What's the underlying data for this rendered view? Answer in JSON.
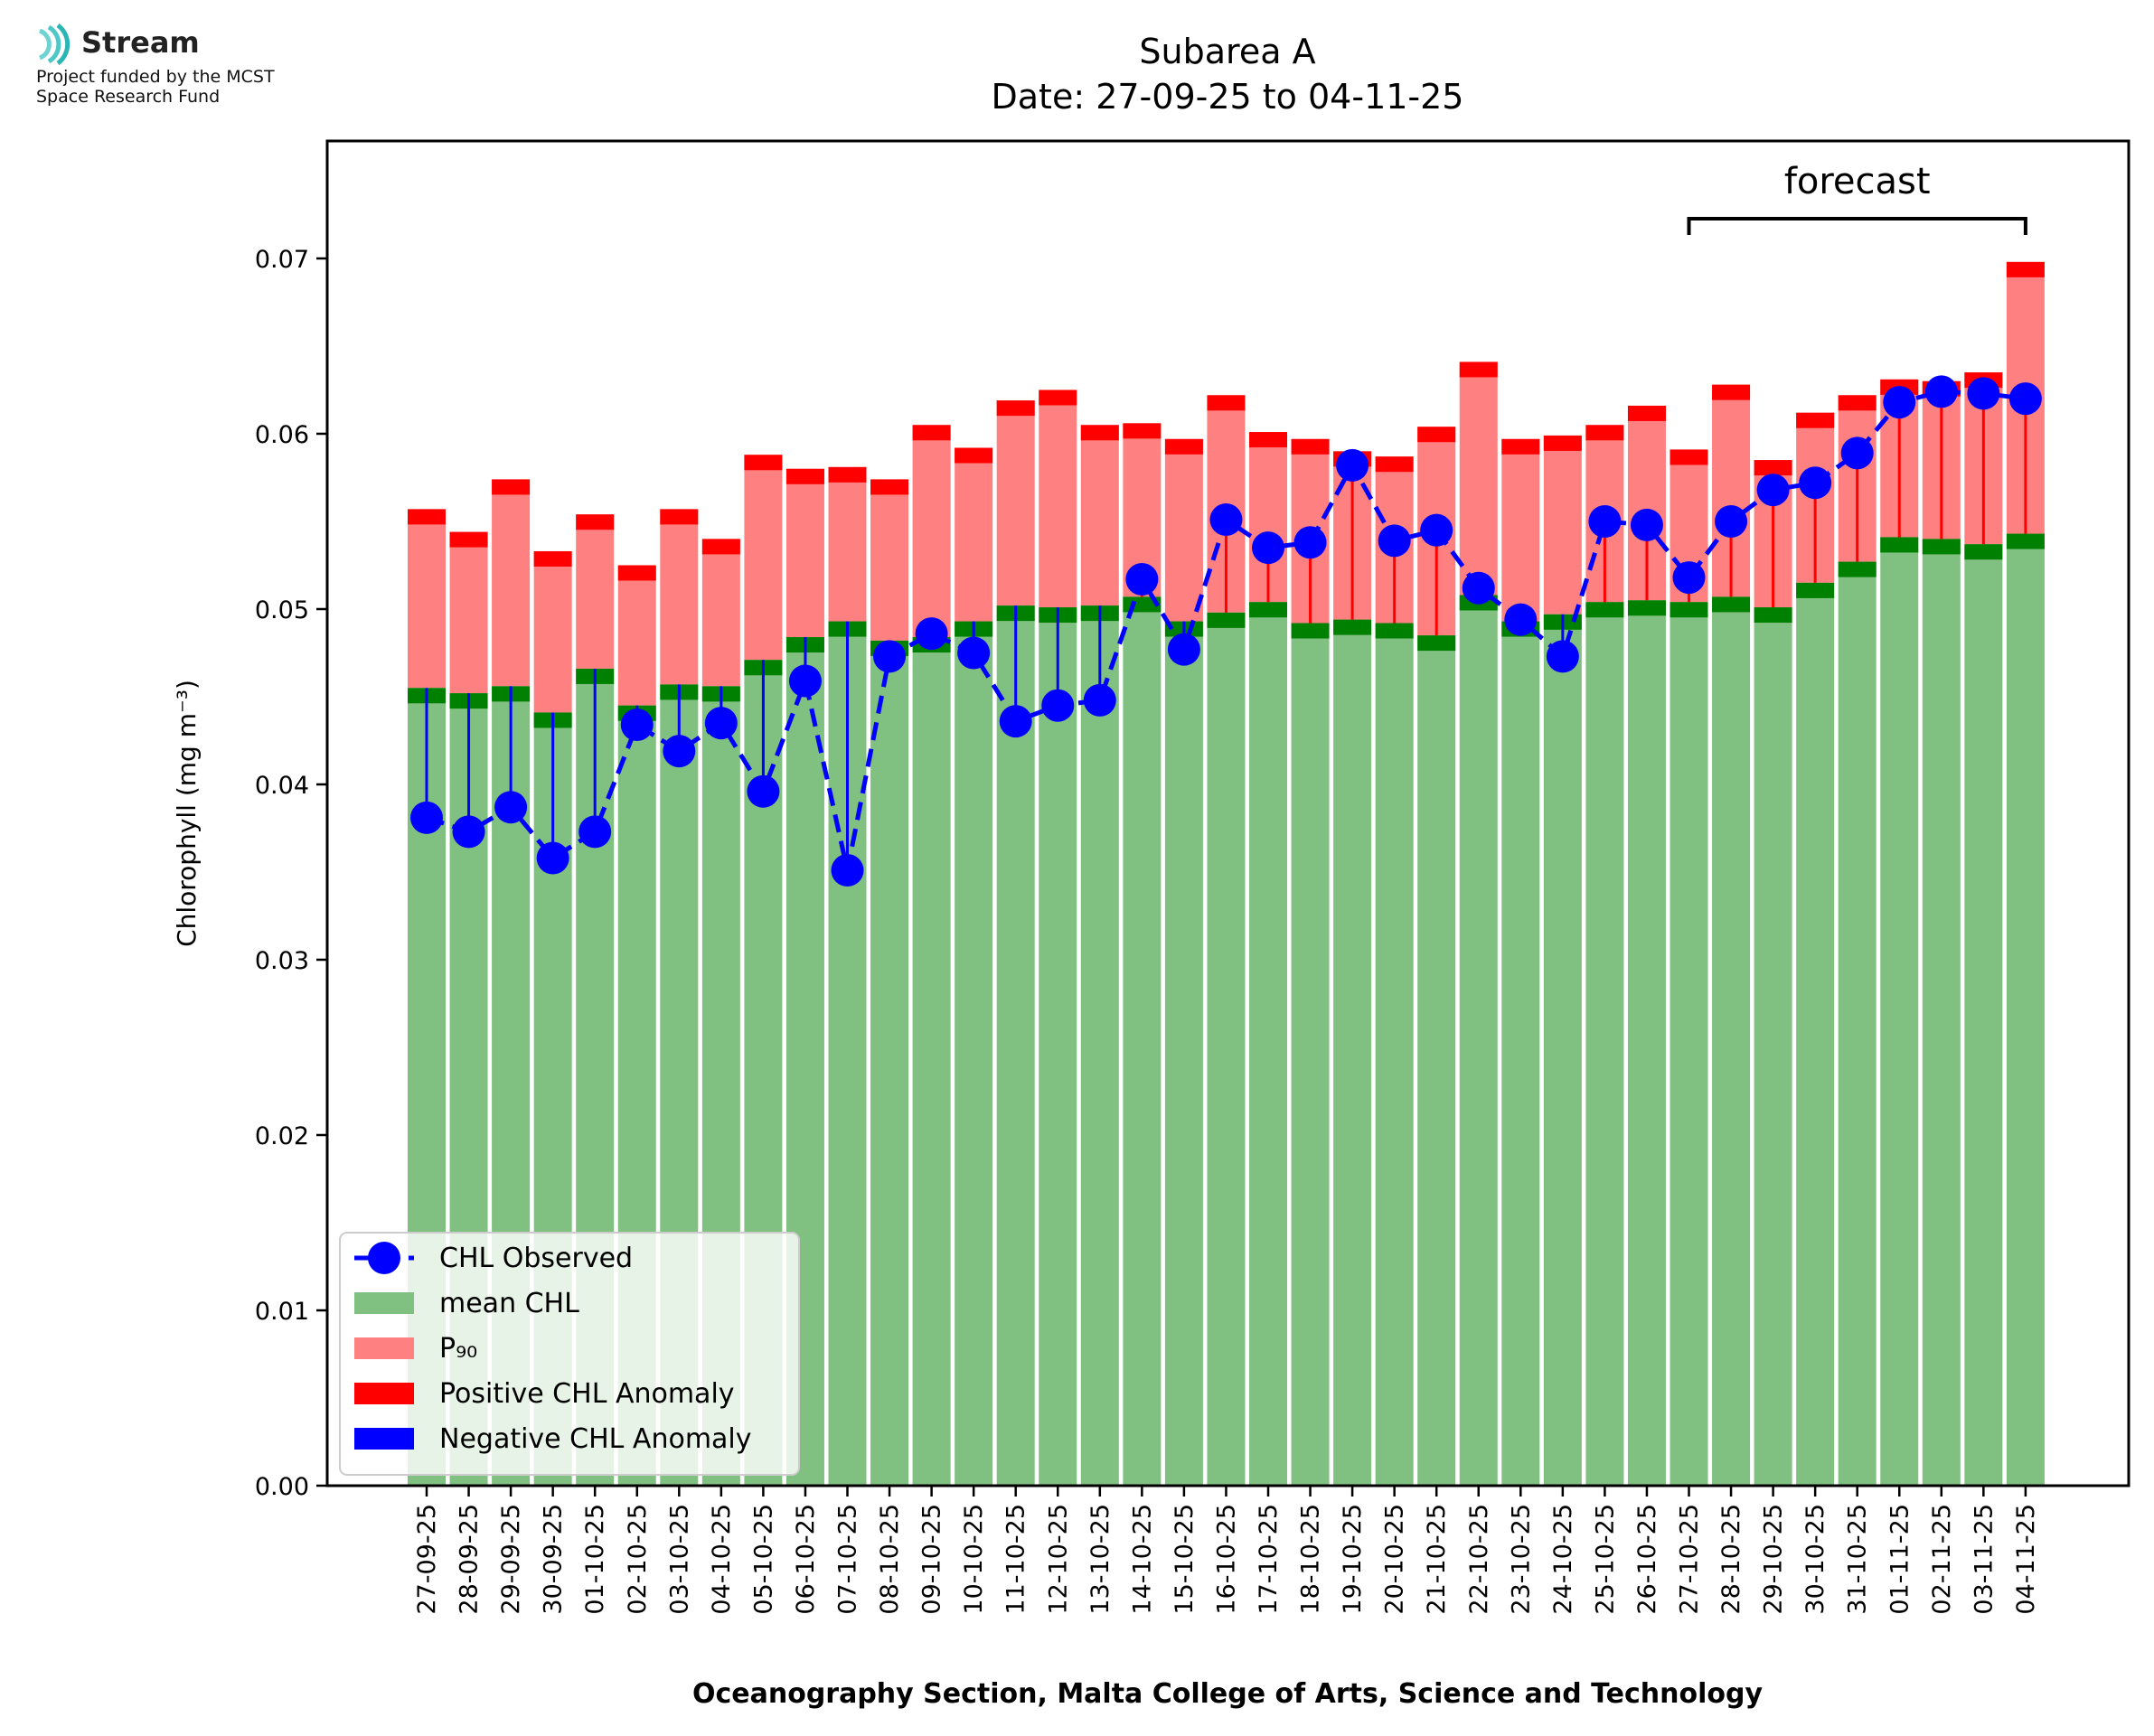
{
  "branding": {
    "logo_name": "Stream",
    "funding_line1": "Project funded by the MCST",
    "funding_line2": "Space Research Fund"
  },
  "chart_data": {
    "type": "bar",
    "title_line1": "Subarea A",
    "title_line2": "Date: 27-09-25 to 04-11-25",
    "xlabel": "Oceanography Section, Malta College of Arts, Science and Technology",
    "ylabel": "Chlorophyll (mg m⁻³)",
    "ylim": [
      0,
      0.0767
    ],
    "yticks": [
      0.0,
      0.01,
      0.02,
      0.03,
      0.04,
      0.05,
      0.06,
      0.07
    ],
    "ytick_labels": [
      "0.00",
      "0.01",
      "0.02",
      "0.03",
      "0.04",
      "0.05",
      "0.06",
      "0.07"
    ],
    "forecast_label": "forecast",
    "forecast_range": [
      "27-10-25",
      "04-11-25"
    ],
    "categories": [
      "27-09-25",
      "28-09-25",
      "29-09-25",
      "30-09-25",
      "01-10-25",
      "02-10-25",
      "03-10-25",
      "04-10-25",
      "05-10-25",
      "06-10-25",
      "07-10-25",
      "08-10-25",
      "09-10-25",
      "10-10-25",
      "11-10-25",
      "12-10-25",
      "13-10-25",
      "14-10-25",
      "15-10-25",
      "16-10-25",
      "17-10-25",
      "18-10-25",
      "19-10-25",
      "20-10-25",
      "21-10-25",
      "22-10-25",
      "23-10-25",
      "24-10-25",
      "25-10-25",
      "26-10-25",
      "27-10-25",
      "28-10-25",
      "29-10-25",
      "30-10-25",
      "31-10-25",
      "01-11-25",
      "02-11-25",
      "03-11-25",
      "04-11-25"
    ],
    "series": [
      {
        "name": "mean CHL",
        "color": "#80c080",
        "values": [
          0.0455,
          0.0452,
          0.0456,
          0.0441,
          0.0466,
          0.0445,
          0.0457,
          0.0456,
          0.0471,
          0.0484,
          0.0493,
          0.0482,
          0.0484,
          0.0493,
          0.0502,
          0.0501,
          0.0502,
          0.0507,
          0.0493,
          0.0498,
          0.0504,
          0.0492,
          0.0494,
          0.0492,
          0.0485,
          0.0508,
          0.0493,
          0.0497,
          0.0504,
          0.0505,
          0.0504,
          0.0507,
          0.0501,
          0.0515,
          0.0527,
          0.0541,
          0.054,
          0.0537,
          0.0543
        ]
      },
      {
        "name": "P₉₀",
        "color": "#ff8080",
        "values": [
          0.0557,
          0.0544,
          0.0574,
          0.0533,
          0.0554,
          0.0525,
          0.0557,
          0.054,
          0.0588,
          0.058,
          0.0581,
          0.0574,
          0.0605,
          0.0592,
          0.0619,
          0.0625,
          0.0605,
          0.0606,
          0.0597,
          0.0622,
          0.0601,
          0.0597,
          0.059,
          0.0587,
          0.0604,
          0.0641,
          0.0597,
          0.0599,
          0.0605,
          0.0616,
          0.0591,
          0.0628,
          0.0585,
          0.0612,
          0.0622,
          0.0631,
          0.063,
          0.0635,
          0.0698
        ]
      },
      {
        "name": "CHL Observed",
        "color": "#0000ff",
        "values": [
          0.0381,
          0.0373,
          0.0387,
          0.0358,
          0.0373,
          0.0434,
          0.0419,
          0.0435,
          0.0396,
          0.0459,
          0.0351,
          0.0473,
          0.0486,
          0.0475,
          0.0436,
          0.0445,
          0.0448,
          0.0517,
          0.0477,
          0.0551,
          0.0535,
          0.0538,
          0.0582,
          0.0539,
          0.0545,
          0.0512,
          0.0494,
          0.0473,
          0.055,
          0.0548,
          0.0518,
          0.055,
          0.0568,
          0.0572,
          0.0589,
          0.0618,
          0.0624,
          0.0623,
          0.062
        ]
      }
    ],
    "legend": {
      "placement": "bottom-left",
      "entries": [
        {
          "label": "CHL Observed",
          "kind": "line-marker",
          "color": "#0000ff"
        },
        {
          "label": "mean CHL",
          "kind": "patch",
          "color": "#80c080"
        },
        {
          "label": "P₉₀",
          "kind": "patch",
          "color": "#ff8080"
        },
        {
          "label": "Positive CHL Anomaly",
          "kind": "patch",
          "color": "#ff0000"
        },
        {
          "label": "Negative CHL Anomaly",
          "kind": "patch",
          "color": "#0000ff"
        }
      ]
    },
    "colors": {
      "mean_cap": "#008000",
      "p90_cap": "#ff0000",
      "positive": "#ff0000",
      "negative": "#0000ff",
      "observed": "#0000ff"
    }
  }
}
